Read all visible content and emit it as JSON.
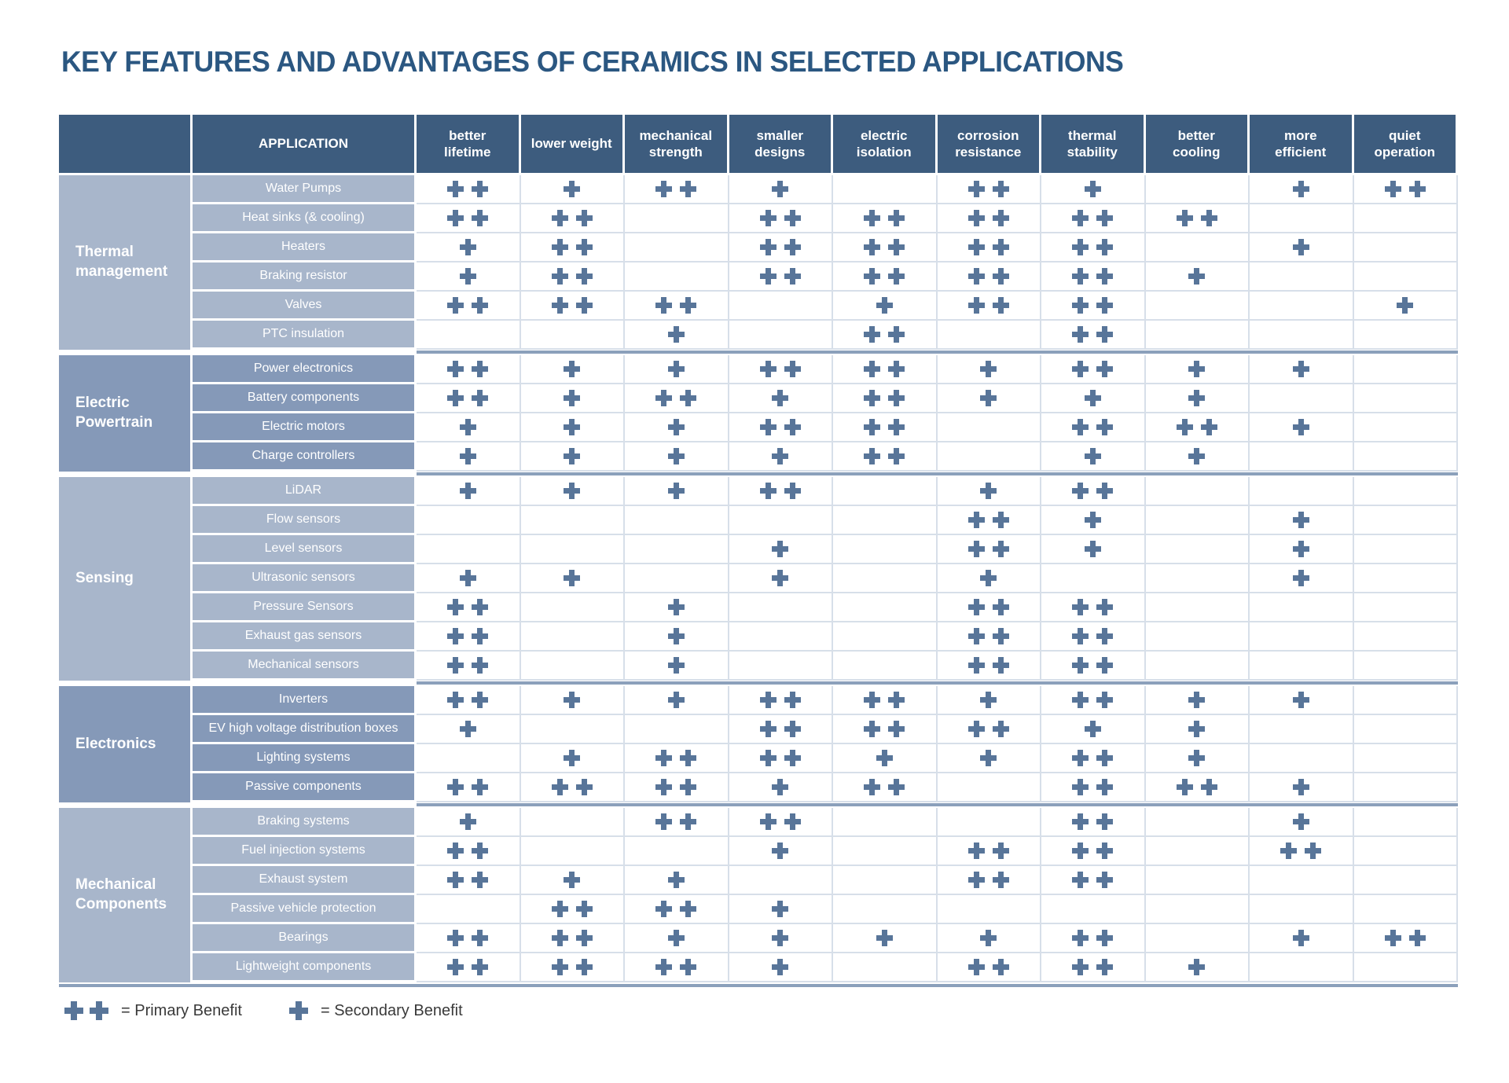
{
  "title": "KEY FEATURES AND ADVANTAGES OF CERAMICS IN SELECTED APPLICATIONS",
  "colors": {
    "title_color": "#2b5781",
    "header_bg": "#3d5c7e",
    "group_light": "#a8b6cb",
    "group_dark": "#8599b8",
    "plus": "#587599",
    "grid_line": "#d7dfe9",
    "group_separator": "#8ba0bb",
    "legend_text": "#3a3a3a"
  },
  "legend": {
    "primary_label": "= Primary Benefit",
    "secondary_label": "= Secondary Benefit"
  },
  "chart_data": {
    "type": "table",
    "title": "KEY FEATURES AND ADVANTAGES OF CERAMICS IN SELECTED APPLICATIONS",
    "columns": [
      "APPLICATION",
      "better lifetime",
      "lower weight",
      "mechanical strength",
      "smaller designs",
      "electric isolation",
      "corrosion resistance",
      "thermal stability",
      "better cooling",
      "more efficient",
      "quiet operation"
    ],
    "value_encoding": {
      "2": "primary benefit (two plus marks)",
      "1": "secondary benefit (one plus mark)",
      "0": "no mark"
    },
    "groups": [
      {
        "label": "Thermal management",
        "shade": "light",
        "rows": [
          {
            "application": "Water Pumps",
            "benefits": [
              2,
              1,
              2,
              1,
              0,
              2,
              1,
              0,
              1,
              2
            ]
          },
          {
            "application": "Heat sinks (& cooling)",
            "benefits": [
              2,
              2,
              0,
              2,
              2,
              2,
              2,
              2,
              0,
              0
            ]
          },
          {
            "application": "Heaters",
            "benefits": [
              1,
              2,
              0,
              2,
              2,
              2,
              2,
              0,
              1,
              0
            ]
          },
          {
            "application": "Braking resistor",
            "benefits": [
              1,
              2,
              0,
              2,
              2,
              2,
              2,
              1,
              0,
              0
            ]
          },
          {
            "application": "Valves",
            "benefits": [
              2,
              2,
              2,
              0,
              1,
              2,
              2,
              0,
              0,
              1
            ]
          },
          {
            "application": "PTC insulation",
            "benefits": [
              0,
              0,
              1,
              0,
              2,
              0,
              2,
              0,
              0,
              0
            ]
          }
        ]
      },
      {
        "label": "Electric Powertrain",
        "shade": "dark",
        "rows": [
          {
            "application": "Power electronics",
            "benefits": [
              2,
              1,
              1,
              2,
              2,
              1,
              2,
              1,
              1,
              0
            ]
          },
          {
            "application": "Battery components",
            "benefits": [
              2,
              1,
              2,
              1,
              2,
              1,
              1,
              1,
              0,
              0
            ]
          },
          {
            "application": "Electric motors",
            "benefits": [
              1,
              1,
              1,
              2,
              2,
              0,
              2,
              2,
              1,
              0
            ]
          },
          {
            "application": "Charge controllers",
            "benefits": [
              1,
              1,
              1,
              1,
              2,
              0,
              1,
              1,
              0,
              0
            ]
          }
        ]
      },
      {
        "label": "Sensing",
        "shade": "light",
        "rows": [
          {
            "application": "LiDAR",
            "benefits": [
              1,
              1,
              1,
              2,
              0,
              1,
              2,
              0,
              0,
              0
            ]
          },
          {
            "application": "Flow sensors",
            "benefits": [
              0,
              0,
              0,
              0,
              0,
              2,
              1,
              0,
              1,
              0
            ]
          },
          {
            "application": "Level sensors",
            "benefits": [
              0,
              0,
              0,
              1,
              0,
              2,
              1,
              0,
              1,
              0
            ]
          },
          {
            "application": "Ultrasonic sensors",
            "benefits": [
              1,
              1,
              0,
              1,
              0,
              1,
              0,
              0,
              1,
              0
            ]
          },
          {
            "application": "Pressure Sensors",
            "benefits": [
              2,
              0,
              1,
              0,
              0,
              2,
              2,
              0,
              0,
              0
            ]
          },
          {
            "application": "Exhaust gas sensors",
            "benefits": [
              2,
              0,
              1,
              0,
              0,
              2,
              2,
              0,
              0,
              0
            ]
          },
          {
            "application": "Mechanical sensors",
            "benefits": [
              2,
              0,
              1,
              0,
              0,
              2,
              2,
              0,
              0,
              0
            ]
          }
        ]
      },
      {
        "label": "Electronics",
        "shade": "dark",
        "rows": [
          {
            "application": "Inverters",
            "benefits": [
              2,
              1,
              1,
              2,
              2,
              1,
              2,
              1,
              1,
              0
            ]
          },
          {
            "application": "EV high voltage distribution boxes",
            "benefits": [
              1,
              0,
              0,
              2,
              2,
              2,
              1,
              1,
              0,
              0
            ]
          },
          {
            "application": "Lighting systems",
            "benefits": [
              0,
              1,
              2,
              2,
              1,
              1,
              2,
              1,
              0,
              0
            ]
          },
          {
            "application": "Passive components",
            "benefits": [
              2,
              2,
              2,
              1,
              2,
              0,
              2,
              2,
              1,
              0
            ]
          }
        ]
      },
      {
        "label": "Mechanical Components",
        "shade": "light",
        "rows": [
          {
            "application": "Braking systems",
            "benefits": [
              1,
              0,
              2,
              2,
              0,
              0,
              2,
              0,
              1,
              0
            ]
          },
          {
            "application": "Fuel injection systems",
            "benefits": [
              2,
              0,
              0,
              1,
              0,
              2,
              2,
              0,
              2,
              0
            ]
          },
          {
            "application": "Exhaust system",
            "benefits": [
              2,
              1,
              1,
              0,
              0,
              2,
              2,
              0,
              0,
              0
            ]
          },
          {
            "application": "Passive vehicle protection",
            "benefits": [
              0,
              2,
              2,
              1,
              0,
              0,
              0,
              0,
              0,
              0
            ]
          },
          {
            "application": "Bearings",
            "benefits": [
              2,
              2,
              1,
              1,
              1,
              1,
              2,
              0,
              1,
              2
            ]
          },
          {
            "application": "Lightweight components",
            "benefits": [
              2,
              2,
              2,
              1,
              0,
              2,
              2,
              1,
              0,
              0
            ]
          }
        ]
      }
    ],
    "legend": {
      "primary_label": "= Primary Benefit",
      "secondary_label": "= Secondary Benefit"
    }
  }
}
